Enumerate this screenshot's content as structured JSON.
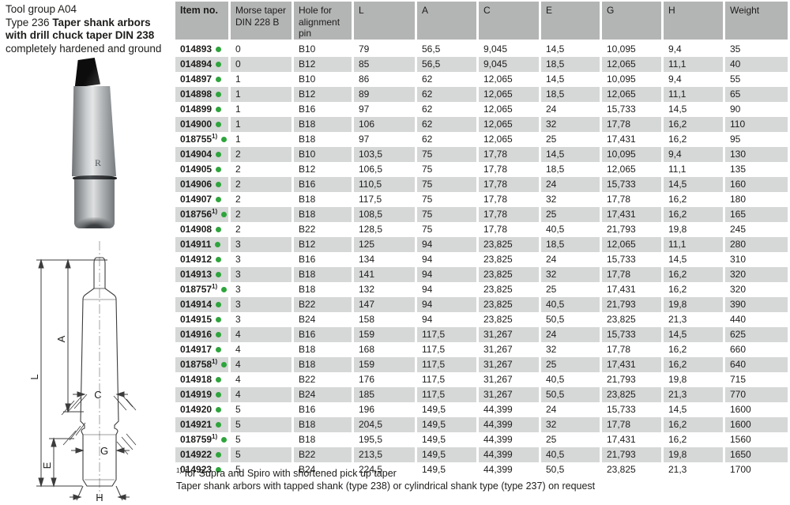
{
  "colors": {
    "header_bg": "#b3b4b4",
    "row_alt": "#d6d7d7",
    "dot_green": "#2ea43c",
    "text": "#1d1d1b"
  },
  "header": {
    "tool_group": "Tool group A04",
    "type_label": "Type 236",
    "title_bold": "Taper shank arbors with drill chuck taper DIN 238",
    "subtitle": "completely hardened and ground"
  },
  "photo": {
    "marking": "R"
  },
  "drawing": {
    "labels": {
      "L": "L",
      "A": "A",
      "C": "C",
      "E": "E",
      "G": "G",
      "H": "H"
    }
  },
  "table": {
    "headers": [
      "Item no.",
      "Morse taper DIN 228 B",
      "Hole for alignment pin",
      "L",
      "A",
      "C",
      "E",
      "G",
      "H",
      "Weight"
    ],
    "rows": [
      {
        "item": "014893",
        "note": "",
        "values": [
          "0",
          "B10",
          "79",
          "56,5",
          "9,045",
          "14,5",
          "10,095",
          "9,4",
          "35"
        ]
      },
      {
        "item": "014894",
        "note": "",
        "values": [
          "0",
          "B12",
          "85",
          "56,5",
          "9,045",
          "18,5",
          "12,065",
          "11,1",
          "40"
        ]
      },
      {
        "item": "014897",
        "note": "",
        "values": [
          "1",
          "B10",
          "86",
          "62",
          "12,065",
          "14,5",
          "10,095",
          "9,4",
          "55"
        ]
      },
      {
        "item": "014898",
        "note": "",
        "values": [
          "1",
          "B12",
          "89",
          "62",
          "12,065",
          "18,5",
          "12,065",
          "11,1",
          "65"
        ]
      },
      {
        "item": "014899",
        "note": "",
        "values": [
          "1",
          "B16",
          "97",
          "62",
          "12,065",
          "24",
          "15,733",
          "14,5",
          "90"
        ]
      },
      {
        "item": "014900",
        "note": "",
        "values": [
          "1",
          "B18",
          "106",
          "62",
          "12,065",
          "32",
          "17,78",
          "16,2",
          "110"
        ]
      },
      {
        "item": "018755",
        "note": "1)",
        "values": [
          "1",
          "B18",
          "97",
          "62",
          "12,065",
          "25",
          "17,431",
          "16,2",
          "95"
        ]
      },
      {
        "item": "014904",
        "note": "",
        "values": [
          "2",
          "B10",
          "103,5",
          "75",
          "17,78",
          "14,5",
          "10,095",
          "9,4",
          "130"
        ]
      },
      {
        "item": "014905",
        "note": "",
        "values": [
          "2",
          "B12",
          "106,5",
          "75",
          "17,78",
          "18,5",
          "12,065",
          "11,1",
          "135"
        ]
      },
      {
        "item": "014906",
        "note": "",
        "values": [
          "2",
          "B16",
          "110,5",
          "75",
          "17,78",
          "24",
          "15,733",
          "14,5",
          "160"
        ]
      },
      {
        "item": "014907",
        "note": "",
        "values": [
          "2",
          "B18",
          "117,5",
          "75",
          "17,78",
          "32",
          "17,78",
          "16,2",
          "180"
        ]
      },
      {
        "item": "018756",
        "note": "1)",
        "values": [
          "2",
          "B18",
          "108,5",
          "75",
          "17,78",
          "25",
          "17,431",
          "16,2",
          "165"
        ]
      },
      {
        "item": "014908",
        "note": "",
        "values": [
          "2",
          "B22",
          "128,5",
          "75",
          "17,78",
          "40,5",
          "21,793",
          "19,8",
          "245"
        ]
      },
      {
        "item": "014911",
        "note": "",
        "values": [
          "3",
          "B12",
          "125",
          "94",
          "23,825",
          "18,5",
          "12,065",
          "11,1",
          "280"
        ]
      },
      {
        "item": "014912",
        "note": "",
        "values": [
          "3",
          "B16",
          "134",
          "94",
          "23,825",
          "24",
          "15,733",
          "14,5",
          "310"
        ]
      },
      {
        "item": "014913",
        "note": "",
        "values": [
          "3",
          "B18",
          "141",
          "94",
          "23,825",
          "32",
          "17,78",
          "16,2",
          "320"
        ]
      },
      {
        "item": "018757",
        "note": "1)",
        "values": [
          "3",
          "B18",
          "132",
          "94",
          "23,825",
          "25",
          "17,431",
          "16,2",
          "320"
        ]
      },
      {
        "item": "014914",
        "note": "",
        "values": [
          "3",
          "B22",
          "147",
          "94",
          "23,825",
          "40,5",
          "21,793",
          "19,8",
          "390"
        ]
      },
      {
        "item": "014915",
        "note": "",
        "values": [
          "3",
          "B24",
          "158",
          "94",
          "23,825",
          "50,5",
          "23,825",
          "21,3",
          "440"
        ]
      },
      {
        "item": "014916",
        "note": "",
        "values": [
          "4",
          "B16",
          "159",
          "117,5",
          "31,267",
          "24",
          "15,733",
          "14,5",
          "625"
        ]
      },
      {
        "item": "014917",
        "note": "",
        "values": [
          "4",
          "B18",
          "168",
          "117,5",
          "31,267",
          "32",
          "17,78",
          "16,2",
          "660"
        ]
      },
      {
        "item": "018758",
        "note": "1)",
        "values": [
          "4",
          "B18",
          "159",
          "117,5",
          "31,267",
          "25",
          "17,431",
          "16,2",
          "640"
        ]
      },
      {
        "item": "014918",
        "note": "",
        "values": [
          "4",
          "B22",
          "176",
          "117,5",
          "31,267",
          "40,5",
          "21,793",
          "19,8",
          "715"
        ]
      },
      {
        "item": "014919",
        "note": "",
        "values": [
          "4",
          "B24",
          "185",
          "117,5",
          "31,267",
          "50,5",
          "23,825",
          "21,3",
          "770"
        ]
      },
      {
        "item": "014920",
        "note": "",
        "values": [
          "5",
          "B16",
          "196",
          "149,5",
          "44,399",
          "24",
          "15,733",
          "14,5",
          "1600"
        ]
      },
      {
        "item": "014921",
        "note": "",
        "values": [
          "5",
          "B18",
          "204,5",
          "149,5",
          "44,399",
          "32",
          "17,78",
          "16,2",
          "1600"
        ]
      },
      {
        "item": "018759",
        "note": "1)",
        "values": [
          "5",
          "B18",
          "195,5",
          "149,5",
          "44,399",
          "25",
          "17,431",
          "16,2",
          "1560"
        ]
      },
      {
        "item": "014922",
        "note": "",
        "values": [
          "5",
          "B22",
          "213,5",
          "149,5",
          "44,399",
          "40,5",
          "21,793",
          "19,8",
          "1650"
        ]
      },
      {
        "item": "014923",
        "note": "",
        "values": [
          "5",
          "B24",
          "224,5",
          "149,5",
          "44,399",
          "50,5",
          "23,825",
          "21,3",
          "1700"
        ]
      }
    ]
  },
  "footnotes": [
    {
      "marker": "1)",
      "text": "for Supra and Spiro with shortened pick up taper"
    },
    {
      "marker": "",
      "text": "Taper shank arbors with tapped shank (type 238) or cylindrical shank type (type 237) on request"
    }
  ]
}
